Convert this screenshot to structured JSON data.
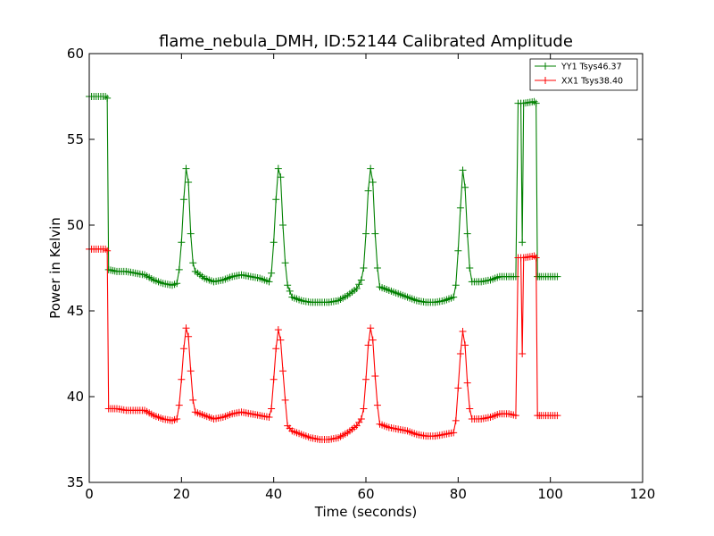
{
  "chart_data": {
    "type": "line",
    "title": "flame_nebula_DMH, ID:52144 Calibrated Amplitude",
    "xlabel": "Time (seconds)",
    "ylabel": "Power in Kelvin",
    "xlim": [
      0,
      120
    ],
    "ylim": [
      35,
      60
    ],
    "xticks": [
      0,
      20,
      40,
      60,
      80,
      100,
      120
    ],
    "yticks": [
      35,
      40,
      45,
      50,
      55,
      60
    ],
    "grid": false,
    "legend_position": "top-right",
    "series": [
      {
        "name": "YY1 Tsys46.37",
        "color": "#008000",
        "marker": "+",
        "points": [
          [
            0.0,
            57.5
          ],
          [
            3.5,
            57.5
          ],
          [
            3.9,
            57.4
          ],
          [
            4.2,
            47.4
          ],
          [
            6,
            47.3
          ],
          [
            8,
            47.3
          ],
          [
            10,
            47.2
          ],
          [
            12,
            47.1
          ],
          [
            14,
            46.8
          ],
          [
            16,
            46.6
          ],
          [
            18,
            46.5
          ],
          [
            19,
            46.6
          ],
          [
            19.5,
            47.4
          ],
          [
            20,
            49.0
          ],
          [
            20.5,
            51.5
          ],
          [
            21,
            53.3
          ],
          [
            21.5,
            52.5
          ],
          [
            22,
            49.5
          ],
          [
            22.5,
            47.8
          ],
          [
            23,
            47.3
          ],
          [
            25,
            46.9
          ],
          [
            27,
            46.7
          ],
          [
            29,
            46.8
          ],
          [
            31,
            47.0
          ],
          [
            33,
            47.1
          ],
          [
            35,
            47.0
          ],
          [
            37,
            46.9
          ],
          [
            39,
            46.7
          ],
          [
            39.5,
            47.2
          ],
          [
            40,
            49.0
          ],
          [
            40.5,
            51.5
          ],
          [
            41,
            53.3
          ],
          [
            41.5,
            52.8
          ],
          [
            42,
            50.0
          ],
          [
            42.5,
            47.8
          ],
          [
            43,
            46.5
          ],
          [
            44,
            45.8
          ],
          [
            46,
            45.6
          ],
          [
            48,
            45.5
          ],
          [
            50,
            45.5
          ],
          [
            52,
            45.5
          ],
          [
            54,
            45.6
          ],
          [
            56,
            45.9
          ],
          [
            58,
            46.3
          ],
          [
            59,
            46.8
          ],
          [
            59.5,
            47.5
          ],
          [
            60,
            49.5
          ],
          [
            60.5,
            52.0
          ],
          [
            61,
            53.3
          ],
          [
            61.5,
            52.5
          ],
          [
            62,
            49.5
          ],
          [
            62.5,
            47.5
          ],
          [
            63,
            46.4
          ],
          [
            65,
            46.2
          ],
          [
            67,
            46.0
          ],
          [
            69,
            45.8
          ],
          [
            71,
            45.6
          ],
          [
            73,
            45.5
          ],
          [
            75,
            45.5
          ],
          [
            77,
            45.6
          ],
          [
            79,
            45.8
          ],
          [
            79.5,
            46.5
          ],
          [
            80,
            48.5
          ],
          [
            80.5,
            51.0
          ],
          [
            81,
            53.2
          ],
          [
            81.5,
            52.2
          ],
          [
            82,
            49.5
          ],
          [
            82.5,
            47.5
          ],
          [
            83,
            46.7
          ],
          [
            85,
            46.7
          ],
          [
            87,
            46.8
          ],
          [
            89,
            47.0
          ],
          [
            91,
            47.0
          ],
          [
            92.5,
            47.0
          ],
          [
            93,
            57.1
          ],
          [
            93.6,
            57.1
          ],
          [
            93.9,
            49.0
          ],
          [
            94.2,
            57.1
          ],
          [
            96.5,
            57.2
          ],
          [
            96.9,
            57.1
          ],
          [
            97.2,
            47.0
          ],
          [
            98,
            47.0
          ],
          [
            100,
            47.0
          ],
          [
            101.5,
            47.0
          ]
        ]
      },
      {
        "name": "XX1 Tsys38.40",
        "color": "#ff0000",
        "marker": "+",
        "points": [
          [
            0.0,
            48.6
          ],
          [
            3.5,
            48.6
          ],
          [
            3.9,
            48.5
          ],
          [
            4.2,
            39.3
          ],
          [
            6,
            39.3
          ],
          [
            8,
            39.2
          ],
          [
            10,
            39.2
          ],
          [
            12,
            39.2
          ],
          [
            14,
            38.9
          ],
          [
            16,
            38.7
          ],
          [
            18,
            38.6
          ],
          [
            19,
            38.7
          ],
          [
            19.5,
            39.5
          ],
          [
            20,
            41.0
          ],
          [
            20.5,
            42.8
          ],
          [
            21,
            44.0
          ],
          [
            21.5,
            43.5
          ],
          [
            22,
            41.5
          ],
          [
            22.5,
            39.8
          ],
          [
            23,
            39.1
          ],
          [
            25,
            38.9
          ],
          [
            27,
            38.7
          ],
          [
            29,
            38.8
          ],
          [
            31,
            39.0
          ],
          [
            33,
            39.1
          ],
          [
            35,
            39.0
          ],
          [
            37,
            38.9
          ],
          [
            39,
            38.8
          ],
          [
            39.5,
            39.3
          ],
          [
            40,
            41.0
          ],
          [
            40.5,
            42.8
          ],
          [
            41,
            43.9
          ],
          [
            41.5,
            43.3
          ],
          [
            42,
            41.5
          ],
          [
            42.5,
            39.8
          ],
          [
            43,
            38.3
          ],
          [
            44,
            38.0
          ],
          [
            46,
            37.8
          ],
          [
            48,
            37.6
          ],
          [
            50,
            37.5
          ],
          [
            52,
            37.5
          ],
          [
            54,
            37.6
          ],
          [
            56,
            37.9
          ],
          [
            58,
            38.3
          ],
          [
            59,
            38.7
          ],
          [
            59.5,
            39.3
          ],
          [
            60,
            41.0
          ],
          [
            60.5,
            43.0
          ],
          [
            61,
            44.0
          ],
          [
            61.5,
            43.3
          ],
          [
            62,
            41.2
          ],
          [
            62.5,
            39.5
          ],
          [
            63,
            38.4
          ],
          [
            65,
            38.2
          ],
          [
            67,
            38.1
          ],
          [
            69,
            38.0
          ],
          [
            71,
            37.8
          ],
          [
            73,
            37.7
          ],
          [
            75,
            37.7
          ],
          [
            77,
            37.8
          ],
          [
            79,
            37.9
          ],
          [
            79.5,
            38.6
          ],
          [
            80,
            40.5
          ],
          [
            80.5,
            42.5
          ],
          [
            81,
            43.8
          ],
          [
            81.5,
            43.0
          ],
          [
            82,
            40.8
          ],
          [
            82.5,
            39.3
          ],
          [
            83,
            38.7
          ],
          [
            85,
            38.7
          ],
          [
            87,
            38.8
          ],
          [
            89,
            39.0
          ],
          [
            91,
            39.0
          ],
          [
            92.5,
            38.9
          ],
          [
            93,
            48.1
          ],
          [
            93.6,
            48.1
          ],
          [
            93.9,
            42.5
          ],
          [
            94.2,
            48.1
          ],
          [
            96.5,
            48.2
          ],
          [
            96.9,
            48.1
          ],
          [
            97.2,
            38.9
          ],
          [
            98,
            38.9
          ],
          [
            100,
            38.9
          ],
          [
            101.5,
            38.9
          ]
        ]
      }
    ]
  }
}
